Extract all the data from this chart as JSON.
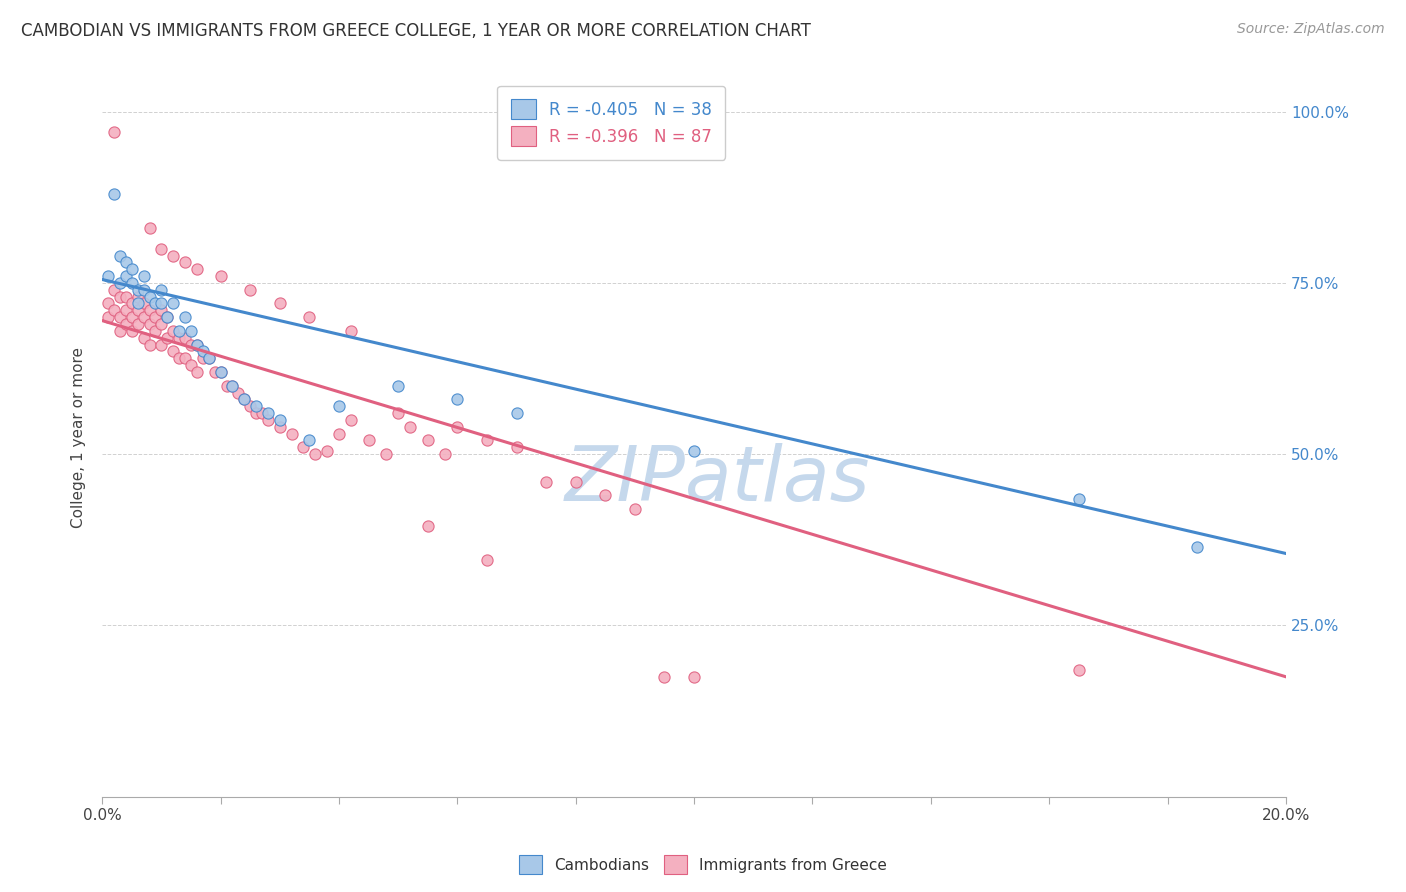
{
  "title": "CAMBODIAN VS IMMIGRANTS FROM GREECE COLLEGE, 1 YEAR OR MORE CORRELATION CHART",
  "source": "Source: ZipAtlas.com",
  "ylabel": "College, 1 year or more",
  "legend_blue": "R = -0.405   N = 38",
  "legend_pink": "R = -0.396   N = 87",
  "legend_label_blue": "Cambodians",
  "legend_label_pink": "Immigrants from Greece",
  "blue_color": "#a8c8e8",
  "pink_color": "#f4b0c0",
  "blue_line_color": "#4488cc",
  "pink_line_color": "#e06080",
  "watermark": "ZIPatlas",
  "blue_scatter": [
    [
      0.001,
      0.76
    ],
    [
      0.002,
      0.88
    ],
    [
      0.003,
      0.79
    ],
    [
      0.003,
      0.75
    ],
    [
      0.004,
      0.76
    ],
    [
      0.004,
      0.78
    ],
    [
      0.005,
      0.77
    ],
    [
      0.005,
      0.75
    ],
    [
      0.006,
      0.74
    ],
    [
      0.006,
      0.72
    ],
    [
      0.007,
      0.76
    ],
    [
      0.007,
      0.74
    ],
    [
      0.008,
      0.73
    ],
    [
      0.009,
      0.72
    ],
    [
      0.01,
      0.74
    ],
    [
      0.01,
      0.72
    ],
    [
      0.011,
      0.7
    ],
    [
      0.012,
      0.72
    ],
    [
      0.013,
      0.68
    ],
    [
      0.014,
      0.7
    ],
    [
      0.015,
      0.68
    ],
    [
      0.016,
      0.66
    ],
    [
      0.017,
      0.65
    ],
    [
      0.018,
      0.64
    ],
    [
      0.02,
      0.62
    ],
    [
      0.022,
      0.6
    ],
    [
      0.024,
      0.58
    ],
    [
      0.026,
      0.57
    ],
    [
      0.028,
      0.56
    ],
    [
      0.03,
      0.55
    ],
    [
      0.035,
      0.52
    ],
    [
      0.04,
      0.57
    ],
    [
      0.05,
      0.6
    ],
    [
      0.06,
      0.58
    ],
    [
      0.07,
      0.56
    ],
    [
      0.1,
      0.505
    ],
    [
      0.165,
      0.435
    ],
    [
      0.185,
      0.365
    ]
  ],
  "pink_scatter": [
    [
      0.001,
      0.72
    ],
    [
      0.001,
      0.7
    ],
    [
      0.002,
      0.74
    ],
    [
      0.002,
      0.71
    ],
    [
      0.003,
      0.73
    ],
    [
      0.003,
      0.7
    ],
    [
      0.003,
      0.68
    ],
    [
      0.004,
      0.73
    ],
    [
      0.004,
      0.71
    ],
    [
      0.004,
      0.69
    ],
    [
      0.005,
      0.72
    ],
    [
      0.005,
      0.7
    ],
    [
      0.005,
      0.68
    ],
    [
      0.006,
      0.73
    ],
    [
      0.006,
      0.71
    ],
    [
      0.006,
      0.69
    ],
    [
      0.007,
      0.72
    ],
    [
      0.007,
      0.7
    ],
    [
      0.007,
      0.67
    ],
    [
      0.008,
      0.71
    ],
    [
      0.008,
      0.69
    ],
    [
      0.008,
      0.66
    ],
    [
      0.009,
      0.7
    ],
    [
      0.009,
      0.68
    ],
    [
      0.01,
      0.71
    ],
    [
      0.01,
      0.69
    ],
    [
      0.01,
      0.66
    ],
    [
      0.011,
      0.7
    ],
    [
      0.011,
      0.67
    ],
    [
      0.012,
      0.68
    ],
    [
      0.012,
      0.65
    ],
    [
      0.013,
      0.67
    ],
    [
      0.013,
      0.64
    ],
    [
      0.014,
      0.67
    ],
    [
      0.014,
      0.64
    ],
    [
      0.015,
      0.66
    ],
    [
      0.015,
      0.63
    ],
    [
      0.016,
      0.66
    ],
    [
      0.016,
      0.62
    ],
    [
      0.017,
      0.64
    ],
    [
      0.018,
      0.64
    ],
    [
      0.019,
      0.62
    ],
    [
      0.02,
      0.62
    ],
    [
      0.021,
      0.6
    ],
    [
      0.022,
      0.6
    ],
    [
      0.023,
      0.59
    ],
    [
      0.024,
      0.58
    ],
    [
      0.025,
      0.57
    ],
    [
      0.026,
      0.56
    ],
    [
      0.027,
      0.56
    ],
    [
      0.028,
      0.55
    ],
    [
      0.03,
      0.54
    ],
    [
      0.032,
      0.53
    ],
    [
      0.034,
      0.51
    ],
    [
      0.036,
      0.5
    ],
    [
      0.038,
      0.505
    ],
    [
      0.04,
      0.53
    ],
    [
      0.042,
      0.55
    ],
    [
      0.045,
      0.52
    ],
    [
      0.048,
      0.5
    ],
    [
      0.05,
      0.56
    ],
    [
      0.052,
      0.54
    ],
    [
      0.055,
      0.52
    ],
    [
      0.058,
      0.5
    ],
    [
      0.06,
      0.54
    ],
    [
      0.065,
      0.52
    ],
    [
      0.07,
      0.51
    ],
    [
      0.075,
      0.46
    ],
    [
      0.08,
      0.46
    ],
    [
      0.085,
      0.44
    ],
    [
      0.09,
      0.42
    ],
    [
      0.002,
      0.97
    ],
    [
      0.008,
      0.83
    ],
    [
      0.01,
      0.8
    ],
    [
      0.012,
      0.79
    ],
    [
      0.014,
      0.78
    ],
    [
      0.016,
      0.77
    ],
    [
      0.02,
      0.76
    ],
    [
      0.025,
      0.74
    ],
    [
      0.03,
      0.72
    ],
    [
      0.035,
      0.7
    ],
    [
      0.042,
      0.68
    ],
    [
      0.055,
      0.395
    ],
    [
      0.065,
      0.345
    ],
    [
      0.1,
      0.175
    ],
    [
      0.095,
      0.175
    ],
    [
      0.165,
      0.185
    ]
  ],
  "xlim": [
    0.0,
    0.2
  ],
  "ylim": [
    0.0,
    1.05
  ],
  "blue_line": [
    0.0,
    0.2,
    0.755,
    0.355
  ],
  "pink_line": [
    0.0,
    0.2,
    0.695,
    0.175
  ],
  "grid_color": "#cccccc",
  "background_color": "#ffffff",
  "title_fontsize": 12,
  "axis_label_fontsize": 11,
  "tick_fontsize": 11,
  "source_fontsize": 10,
  "watermark_color": "#c5d8ec",
  "watermark_fontsize": 55,
  "right_tick_color": "#4488cc"
}
